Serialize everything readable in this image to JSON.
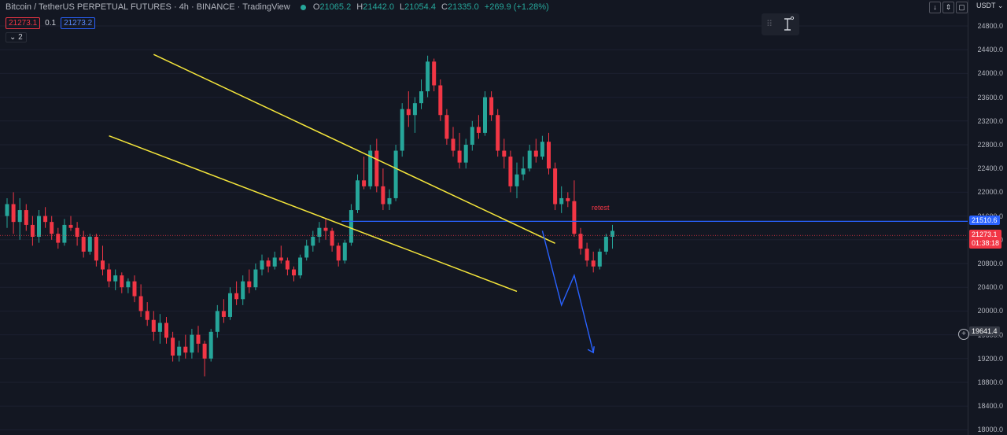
{
  "legend": {
    "symbol": "Bitcoin / TetherUS PERPETUAL FUTURES",
    "interval": "4h",
    "exchange": "BINANCE",
    "source": "TradingView",
    "open": "21065.2",
    "high": "21442.0",
    "low": "21054.4",
    "close": "21335.0",
    "change": "+269.9 (+1.28%)"
  },
  "badges": {
    "sell": "21273.1",
    "spread": "0.1",
    "buy": "21273.2"
  },
  "collapse_label": "2",
  "currency": "USDT",
  "annotation": "retest",
  "labels": {
    "horizontal_line": "21510.6",
    "current_price": "21273.1",
    "countdown": "01:38:18",
    "crosshair": "19641.4"
  },
  "colors": {
    "up": "#26a69a",
    "down": "#f23645",
    "trend": "#f5e63b",
    "level": "#2962ff"
  },
  "chart_data": {
    "type": "candlestick",
    "ylim": [
      18000,
      25000
    ],
    "y_ticks": [
      24800,
      24400,
      24000,
      23600,
      23200,
      22800,
      22400,
      22000,
      21600,
      21200,
      20800,
      20400,
      20000,
      19600,
      19200,
      18800,
      18400,
      18000
    ],
    "candles": [
      [
        21600,
        21900,
        21400,
        21800
      ],
      [
        21800,
        22000,
        21300,
        21500
      ],
      [
        21500,
        21900,
        21200,
        21700
      ],
      [
        21700,
        21800,
        21350,
        21450
      ],
      [
        21450,
        21600,
        21100,
        21250
      ],
      [
        21250,
        21700,
        21150,
        21600
      ],
      [
        21600,
        21750,
        21400,
        21500
      ],
      [
        21500,
        21600,
        21200,
        21300
      ],
      [
        21300,
        21400,
        21050,
        21150
      ],
      [
        21150,
        21550,
        21100,
        21450
      ],
      [
        21450,
        21600,
        21350,
        21400
      ],
      [
        21400,
        21500,
        21100,
        21250
      ],
      [
        21250,
        21350,
        20900,
        21000
      ],
      [
        21000,
        21300,
        20950,
        21250
      ],
      [
        21250,
        21300,
        20750,
        20850
      ],
      [
        20850,
        21100,
        20600,
        20700
      ],
      [
        20700,
        20800,
        20400,
        20500
      ],
      [
        20500,
        20700,
        20350,
        20600
      ],
      [
        20600,
        20650,
        20300,
        20400
      ],
      [
        20400,
        20550,
        20300,
        20500
      ],
      [
        20500,
        20600,
        20150,
        20250
      ],
      [
        20250,
        20450,
        19900,
        20000
      ],
      [
        20000,
        20150,
        19750,
        19850
      ],
      [
        19850,
        20000,
        19500,
        19650
      ],
      [
        19650,
        19950,
        19450,
        19800
      ],
      [
        19800,
        19900,
        19450,
        19550
      ],
      [
        19550,
        19650,
        19150,
        19250
      ],
      [
        19250,
        19500,
        19150,
        19400
      ],
      [
        19400,
        19600,
        19200,
        19300
      ],
      [
        19300,
        19700,
        19200,
        19600
      ],
      [
        19600,
        19750,
        19300,
        19450
      ],
      [
        19450,
        19500,
        18900,
        19200
      ],
      [
        19200,
        19700,
        19150,
        19650
      ],
      [
        19650,
        20100,
        19550,
        20000
      ],
      [
        20000,
        20200,
        19800,
        19900
      ],
      [
        19900,
        20400,
        19850,
        20300
      ],
      [
        20300,
        20500,
        20100,
        20200
      ],
      [
        20200,
        20600,
        20100,
        20500
      ],
      [
        20500,
        20700,
        20300,
        20400
      ],
      [
        20400,
        20800,
        20350,
        20700
      ],
      [
        20700,
        20950,
        20600,
        20850
      ],
      [
        20850,
        20900,
        20650,
        20750
      ],
      [
        20750,
        21000,
        20700,
        20900
      ],
      [
        20900,
        21100,
        20800,
        20850
      ],
      [
        20850,
        20900,
        20600,
        20700
      ],
      [
        20700,
        20750,
        20500,
        20600
      ],
      [
        20600,
        20950,
        20550,
        20900
      ],
      [
        20900,
        21200,
        20850,
        21100
      ],
      [
        21100,
        21350,
        21000,
        21250
      ],
      [
        21250,
        21500,
        21150,
        21400
      ],
      [
        21400,
        21550,
        21200,
        21350
      ],
      [
        21350,
        21400,
        21000,
        21100
      ],
      [
        21100,
        21150,
        20750,
        20850
      ],
      [
        20850,
        21200,
        20800,
        21150
      ],
      [
        21150,
        21800,
        21100,
        21700
      ],
      [
        21700,
        22300,
        21650,
        22200
      ],
      [
        22200,
        22600,
        22050,
        22100
      ],
      [
        22100,
        22800,
        22050,
        22700
      ],
      [
        22700,
        22900,
        22000,
        22100
      ],
      [
        22100,
        22400,
        21700,
        21800
      ],
      [
        21800,
        22050,
        21700,
        21900
      ],
      [
        21900,
        22800,
        21850,
        22700
      ],
      [
        22700,
        23500,
        22600,
        23400
      ],
      [
        23400,
        23700,
        23100,
        23300
      ],
      [
        23300,
        23600,
        23000,
        23500
      ],
      [
        23500,
        23900,
        23400,
        23700
      ],
      [
        23700,
        24300,
        23600,
        24200
      ],
      [
        24200,
        24250,
        23700,
        23800
      ],
      [
        23800,
        23900,
        23200,
        23300
      ],
      [
        23300,
        23400,
        22800,
        22900
      ],
      [
        22900,
        23100,
        22600,
        22700
      ],
      [
        22700,
        23000,
        22400,
        22500
      ],
      [
        22500,
        22900,
        22400,
        22800
      ],
      [
        22800,
        23200,
        22700,
        23100
      ],
      [
        23100,
        23300,
        22900,
        23000
      ],
      [
        23000,
        23700,
        22950,
        23600
      ],
      [
        23600,
        23700,
        23200,
        23300
      ],
      [
        23300,
        23400,
        22600,
        22700
      ],
      [
        22700,
        22900,
        22400,
        22600
      ],
      [
        22600,
        22700,
        22000,
        22100
      ],
      [
        22100,
        22500,
        21900,
        22300
      ],
      [
        22300,
        22600,
        22200,
        22400
      ],
      [
        22400,
        22800,
        22350,
        22700
      ],
      [
        22700,
        22900,
        22500,
        22600
      ],
      [
        22600,
        22950,
        22550,
        22850
      ],
      [
        22850,
        23000,
        22300,
        22400
      ],
      [
        22400,
        22500,
        21700,
        21800
      ],
      [
        21800,
        22100,
        21650,
        21900
      ],
      [
        21900,
        22000,
        21750,
        21850
      ],
      [
        21850,
        22200,
        21250,
        21300
      ],
      [
        21300,
        21400,
        20950,
        21050
      ],
      [
        21050,
        21150,
        20750,
        20850
      ],
      [
        20850,
        21000,
        20650,
        20750
      ],
      [
        20750,
        21050,
        20700,
        21000
      ],
      [
        21000,
        21300,
        20950,
        21250
      ],
      [
        21250,
        21450,
        21050,
        21350
      ]
    ],
    "horizontal_level": 21510.6,
    "current_price": 21273.1,
    "channel_upper": [
      [
        24320,
        23
      ],
      [
        21140,
        86
      ]
    ],
    "channel_lower": [
      [
        22950,
        16
      ],
      [
        20330,
        80
      ]
    ],
    "projection": [
      [
        21350,
        84
      ],
      [
        20100,
        87
      ],
      [
        20600,
        89
      ],
      [
        19300,
        92
      ]
    ],
    "x_labels": []
  }
}
